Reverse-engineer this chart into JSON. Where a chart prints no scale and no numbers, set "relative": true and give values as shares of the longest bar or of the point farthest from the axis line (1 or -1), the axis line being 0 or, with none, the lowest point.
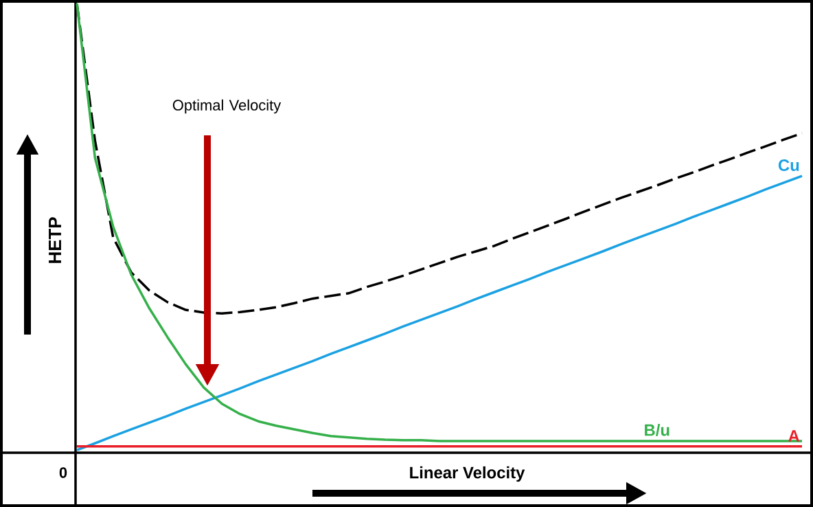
{
  "chart_data": {
    "type": "line",
    "relative": true,
    "xlabel": "Linear Velocity",
    "ylabel": "HETP",
    "annotations": [
      "Optimal Velocity",
      "0"
    ],
    "categories": [
      null,
      null,
      null,
      null,
      null,
      null,
      null,
      null,
      null,
      null,
      null,
      null,
      null,
      null,
      null,
      null,
      null,
      null,
      null,
      null,
      null,
      null,
      null,
      null,
      null,
      null,
      null,
      null,
      null,
      null,
      null,
      null,
      null,
      null,
      null,
      null,
      null,
      null,
      null,
      null,
      null
    ],
    "series": [
      {
        "color": "#000000",
        "line_style": "dashed",
        "values": [
          1.0,
          0.694,
          0.479,
          0.401,
          0.361,
          0.335,
          0.318,
          0.312,
          0.31,
          0.313,
          0.318,
          0.324,
          0.333,
          0.343,
          0.349,
          0.355,
          0.369,
          0.381,
          0.394,
          0.408,
          0.422,
          0.436,
          0.448,
          0.46,
          0.476,
          0.491,
          0.506,
          0.521,
          0.537,
          0.552,
          0.567,
          0.581,
          0.595,
          0.61,
          0.624,
          0.639,
          0.653,
          0.668,
          0.682,
          0.697,
          0.711
        ]
      },
      {
        "name": "Cu",
        "color": "#1ba1e2",
        "values": [
          0.006,
          0.021,
          0.037,
          0.052,
          0.067,
          0.082,
          0.098,
          0.113,
          0.128,
          0.143,
          0.159,
          0.174,
          0.189,
          0.204,
          0.22,
          0.235,
          0.25,
          0.265,
          0.281,
          0.296,
          0.311,
          0.326,
          0.342,
          0.357,
          0.372,
          0.387,
          0.403,
          0.418,
          0.433,
          0.448,
          0.464,
          0.479,
          0.494,
          0.509,
          0.525,
          0.54,
          0.555,
          0.57,
          0.586,
          0.601,
          0.616
        ]
      },
      {
        "name": "B/u",
        "color": "#35b04a",
        "values": [
          1.0,
          0.656,
          0.503,
          0.396,
          0.321,
          0.257,
          0.197,
          0.145,
          0.109,
          0.086,
          0.07,
          0.06,
          0.052,
          0.044,
          0.037,
          0.034,
          0.031,
          0.029,
          0.028,
          0.028,
          0.026,
          0.026,
          0.026,
          0.026,
          0.026,
          0.026,
          0.026,
          0.026,
          0.026,
          0.026,
          0.026,
          0.026,
          0.026,
          0.026,
          0.026,
          0.026,
          0.026,
          0.026,
          0.026,
          0.026,
          0.026
        ]
      },
      {
        "name": "A",
        "color": "#e8202a",
        "values": [
          0.014,
          0.014,
          0.014,
          0.014,
          0.014,
          0.014,
          0.014,
          0.014,
          0.014,
          0.014,
          0.014,
          0.014,
          0.014,
          0.014,
          0.014,
          0.014,
          0.014,
          0.014,
          0.014,
          0.014,
          0.014,
          0.014,
          0.014,
          0.014,
          0.014,
          0.014,
          0.014,
          0.014,
          0.014,
          0.014,
          0.014,
          0.014,
          0.014,
          0.014,
          0.014,
          0.014,
          0.014,
          0.014,
          0.014,
          0.014,
          0.014
        ]
      }
    ]
  }
}
